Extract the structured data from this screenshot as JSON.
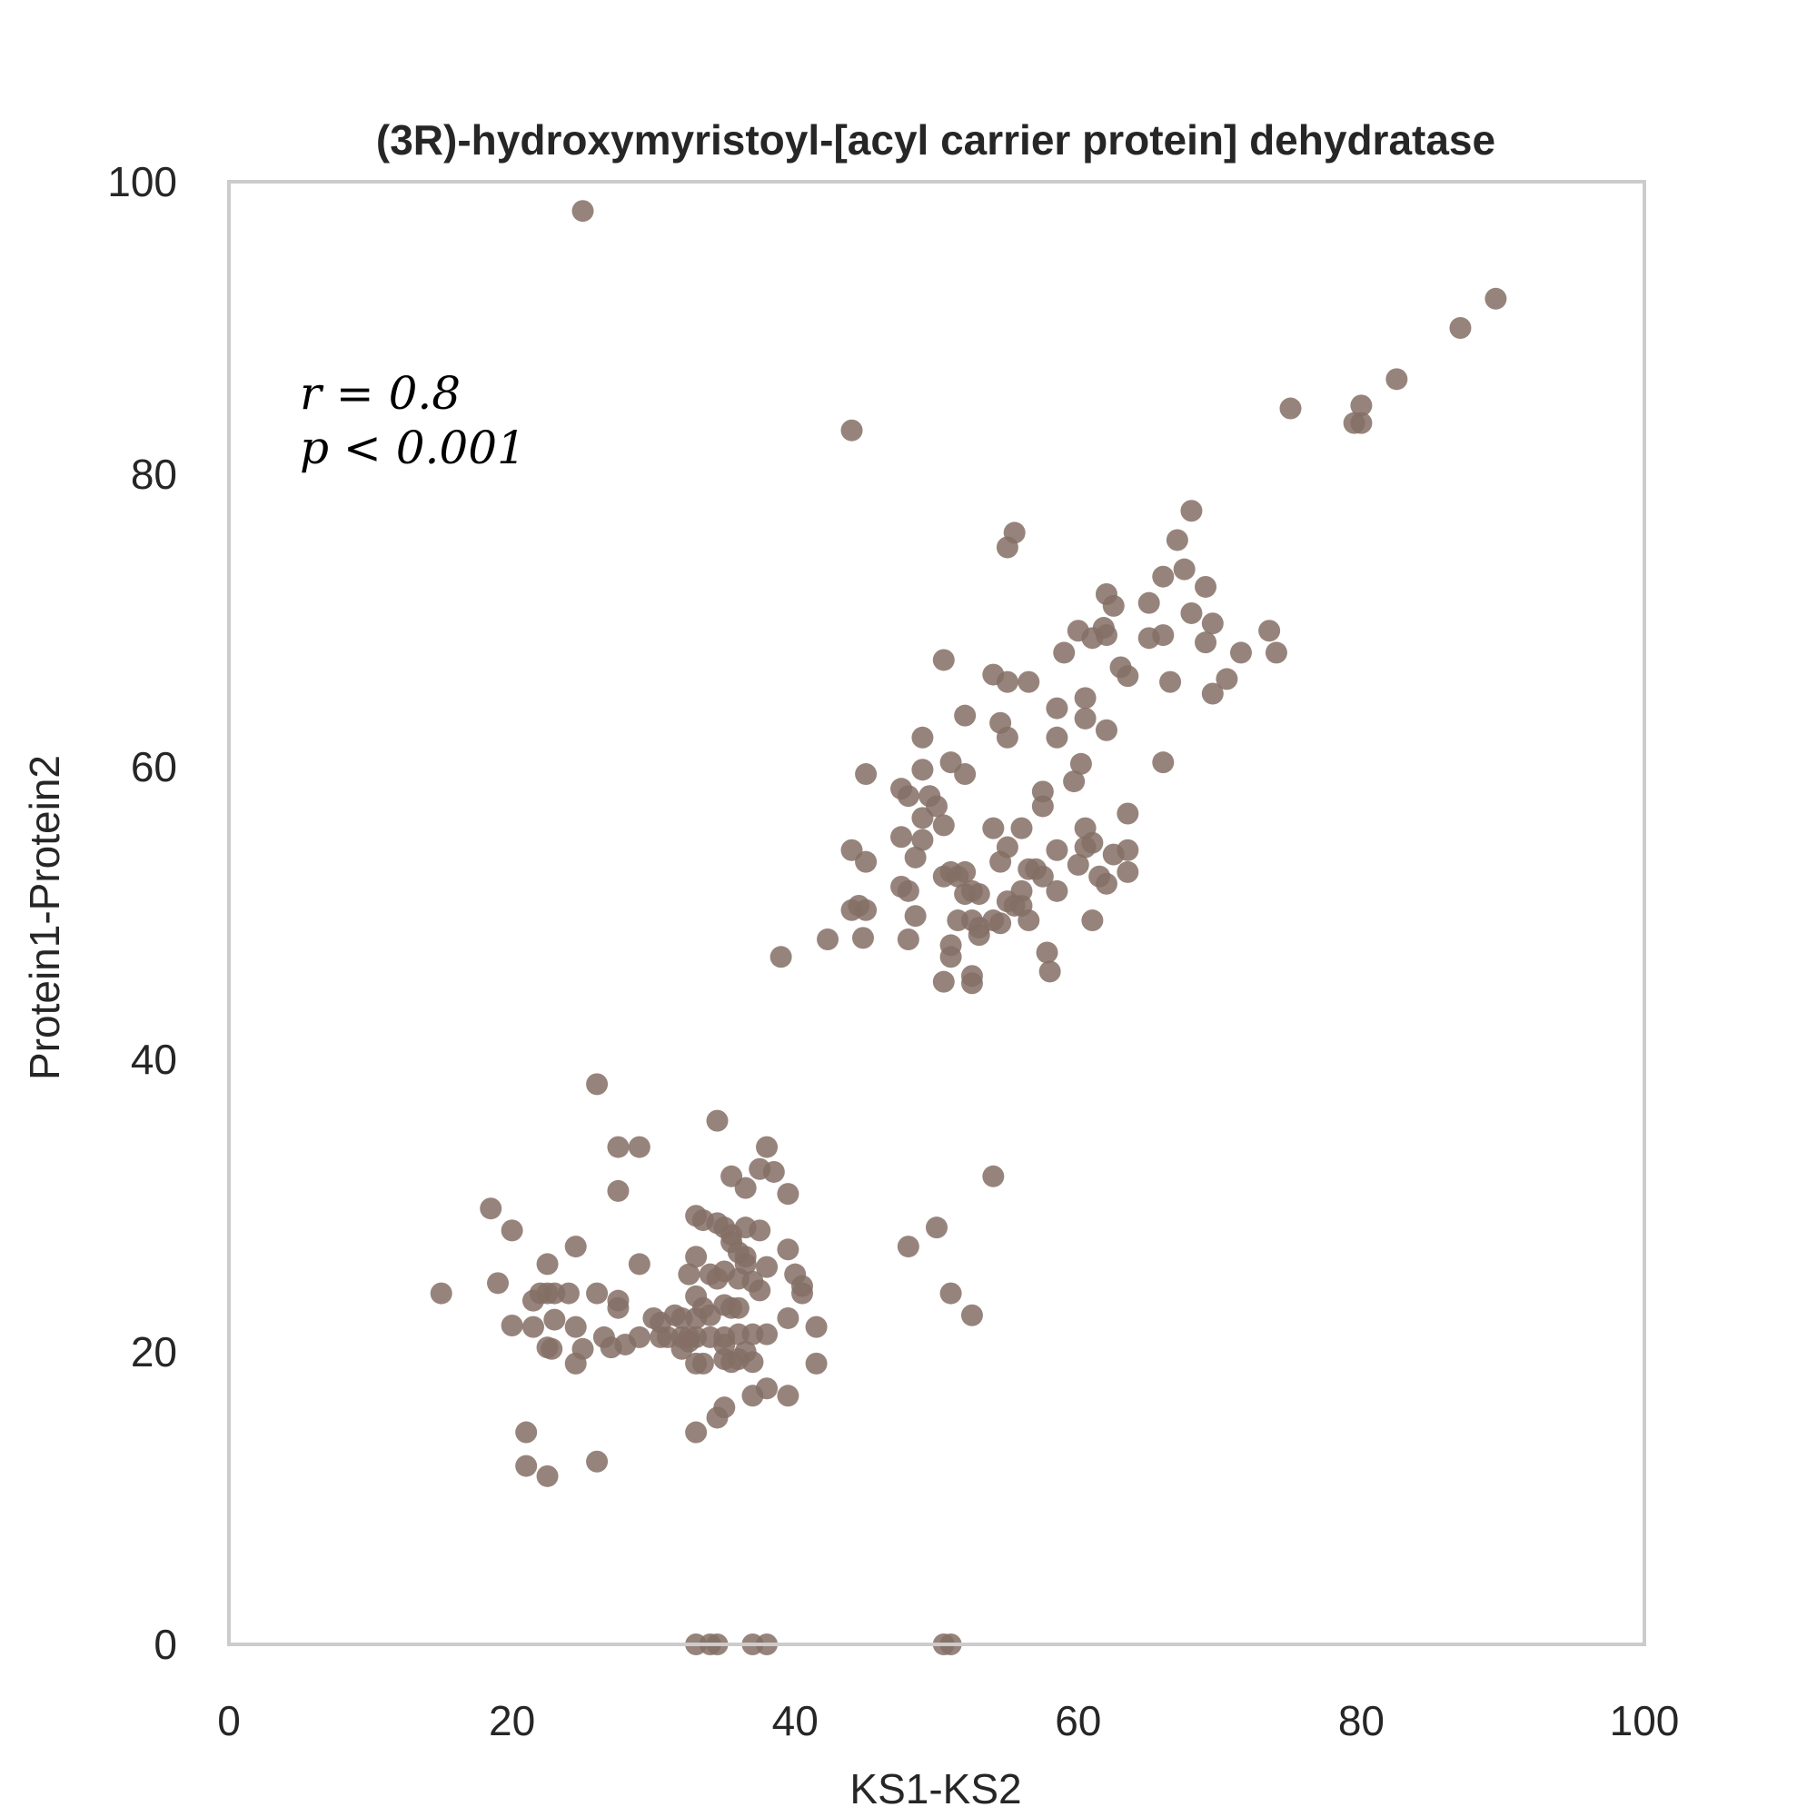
{
  "chart_data": {
    "type": "scatter",
    "title": "(3R)-hydroxymyristoyl-[acyl carrier protein] dehydratase",
    "xlabel": "KS1-KS2",
    "ylabel": "Protein1-Protein2",
    "xlim": [
      0,
      100
    ],
    "ylim": [
      0,
      100
    ],
    "xticks": [
      "0",
      "20",
      "40",
      "60",
      "80",
      "100"
    ],
    "yticks": [
      "0",
      "20",
      "40",
      "60",
      "80",
      "100"
    ],
    "grid": false,
    "annotations": {
      "r": "r = 0.8",
      "p": "p < 0.001"
    },
    "color": "#846e65",
    "points": [
      [
        25,
        98
      ],
      [
        44,
        83
      ],
      [
        75,
        84.5
      ],
      [
        80,
        84.7
      ],
      [
        79.5,
        83.5
      ],
      [
        80,
        83.5
      ],
      [
        82.5,
        86.5
      ],
      [
        87,
        90
      ],
      [
        89.5,
        92
      ],
      [
        55.5,
        76
      ],
      [
        55,
        75
      ],
      [
        68,
        77.5
      ],
      [
        67,
        75.5
      ],
      [
        67.5,
        73.5
      ],
      [
        66,
        73
      ],
      [
        69,
        72.3
      ],
      [
        62,
        71.8
      ],
      [
        62.5,
        71
      ],
      [
        65,
        71.2
      ],
      [
        68,
        70.5
      ],
      [
        69.5,
        69.8
      ],
      [
        60,
        69.3
      ],
      [
        61,
        68.8
      ],
      [
        61.8,
        69.5
      ],
      [
        62,
        69
      ],
      [
        65,
        68.8
      ],
      [
        66,
        69
      ],
      [
        69,
        68.5
      ],
      [
        73.5,
        69.3
      ],
      [
        74,
        67.8
      ],
      [
        71.5,
        67.8
      ],
      [
        59,
        67.8
      ],
      [
        63,
        66.8
      ],
      [
        63.5,
        66.2
      ],
      [
        66.5,
        65.8
      ],
      [
        70.5,
        66
      ],
      [
        69.5,
        65
      ],
      [
        50.5,
        67.3
      ],
      [
        54,
        66.3
      ],
      [
        55,
        65.8
      ],
      [
        56.5,
        65.8
      ],
      [
        58.5,
        64
      ],
      [
        60.5,
        64.7
      ],
      [
        60.5,
        63.3
      ],
      [
        52,
        63.5
      ],
      [
        54.5,
        63
      ],
      [
        55,
        62
      ],
      [
        49,
        62
      ],
      [
        58.5,
        62
      ],
      [
        62,
        62.5
      ],
      [
        51,
        60.3
      ],
      [
        52,
        59.5
      ],
      [
        49,
        59.8
      ],
      [
        45,
        59.5
      ],
      [
        47.5,
        58.5
      ],
      [
        48,
        58
      ],
      [
        49.5,
        58
      ],
      [
        50,
        57.3
      ],
      [
        57.5,
        58.3
      ],
      [
        60.2,
        60.2
      ],
      [
        59.7,
        59
      ],
      [
        66,
        60.3
      ],
      [
        57.5,
        57.3
      ],
      [
        63.5,
        56.8
      ],
      [
        49,
        56.5
      ],
      [
        50.5,
        56
      ],
      [
        54,
        55.8
      ],
      [
        56,
        55.8
      ],
      [
        60.5,
        55.8
      ],
      [
        61,
        54.8
      ],
      [
        44,
        54.3
      ],
      [
        47.5,
        55.2
      ],
      [
        49,
        55
      ],
      [
        55,
        54.5
      ],
      [
        58.5,
        54.3
      ],
      [
        60.5,
        54.5
      ],
      [
        62.5,
        54
      ],
      [
        63.5,
        54.3
      ],
      [
        45,
        53.5
      ],
      [
        48.5,
        53.8
      ],
      [
        54.5,
        53.5
      ],
      [
        60,
        53.3
      ],
      [
        56.5,
        53
      ],
      [
        57,
        53
      ],
      [
        57.5,
        52.5
      ],
      [
        61.5,
        52.5
      ],
      [
        63.5,
        52.8
      ],
      [
        50.5,
        52.5
      ],
      [
        51,
        52.8
      ],
      [
        51.5,
        52.5
      ],
      [
        52,
        52.8
      ],
      [
        47.5,
        51.8
      ],
      [
        48,
        51.5
      ],
      [
        52,
        51.3
      ],
      [
        52.5,
        51.5
      ],
      [
        53,
        51.3
      ],
      [
        56,
        51.5
      ],
      [
        58.5,
        51.5
      ],
      [
        62,
        52
      ],
      [
        44,
        50.2
      ],
      [
        44.5,
        50.5
      ],
      [
        45,
        50.2
      ],
      [
        55,
        50.8
      ],
      [
        55.5,
        50.5
      ],
      [
        56,
        50.5
      ],
      [
        48.5,
        49.8
      ],
      [
        51.5,
        49.5
      ],
      [
        52.5,
        49.5
      ],
      [
        53,
        49
      ],
      [
        54,
        49.5
      ],
      [
        54.5,
        49.3
      ],
      [
        56.5,
        49.5
      ],
      [
        61,
        49.5
      ],
      [
        42.3,
        48.2
      ],
      [
        44.8,
        48.3
      ],
      [
        48,
        48.2
      ],
      [
        53,
        48.5
      ],
      [
        51,
        47.8
      ],
      [
        39,
        47
      ],
      [
        51,
        47
      ],
      [
        57.8,
        47.3
      ],
      [
        58,
        46
      ],
      [
        52.5,
        45.7
      ],
      [
        52.5,
        45.2
      ],
      [
        50.5,
        45.3
      ],
      [
        26,
        38.3
      ],
      [
        34.5,
        35.8
      ],
      [
        27.5,
        34
      ],
      [
        29,
        34
      ],
      [
        38,
        34
      ],
      [
        35.5,
        32
      ],
      [
        37.5,
        32.5
      ],
      [
        38.5,
        32.3
      ],
      [
        54,
        32
      ],
      [
        27.5,
        31
      ],
      [
        36.5,
        31.2
      ],
      [
        39.5,
        30.8
      ],
      [
        18.5,
        29.8
      ],
      [
        33,
        29.3
      ],
      [
        33.5,
        29
      ],
      [
        34.5,
        28.8
      ],
      [
        35,
        28.5
      ],
      [
        20,
        28.3
      ],
      [
        35.5,
        28
      ],
      [
        36.5,
        28.5
      ],
      [
        37.5,
        28.3
      ],
      [
        50,
        28.5
      ],
      [
        35.5,
        27.5
      ],
      [
        36,
        26.8
      ],
      [
        24.5,
        27.2
      ],
      [
        39.5,
        27
      ],
      [
        48,
        27.2
      ],
      [
        22.5,
        26
      ],
      [
        33,
        26.5
      ],
      [
        36.5,
        26.5
      ],
      [
        29,
        26
      ],
      [
        36.5,
        26
      ],
      [
        38,
        25.8
      ],
      [
        32.5,
        25.3
      ],
      [
        34,
        25.3
      ],
      [
        35,
        25.5
      ],
      [
        40,
        25.3
      ],
      [
        19,
        24.7
      ],
      [
        34.5,
        25
      ],
      [
        36,
        25
      ],
      [
        37,
        24.8
      ],
      [
        40.5,
        24.5
      ],
      [
        22,
        24
      ],
      [
        22.5,
        24
      ],
      [
        23,
        24
      ],
      [
        24,
        24
      ],
      [
        26,
        24
      ],
      [
        37.5,
        24.2
      ],
      [
        51,
        24
      ],
      [
        15,
        24
      ],
      [
        40.5,
        24
      ],
      [
        33,
        23.8
      ],
      [
        21.5,
        23.5
      ],
      [
        27.5,
        23.5
      ],
      [
        35,
        23.2
      ],
      [
        35.5,
        23
      ],
      [
        36,
        23
      ],
      [
        27.5,
        23
      ],
      [
        33.5,
        23
      ],
      [
        52.5,
        22.5
      ],
      [
        34,
        22.5
      ],
      [
        31.5,
        22.5
      ],
      [
        32,
        22.3
      ],
      [
        33,
        22.3
      ],
      [
        30,
        22.3
      ],
      [
        30.5,
        22
      ],
      [
        23,
        22.2
      ],
      [
        39.5,
        22.3
      ],
      [
        21.5,
        21.7
      ],
      [
        20,
        21.8
      ],
      [
        24.5,
        21.7
      ],
      [
        41.5,
        21.7
      ],
      [
        29,
        21
      ],
      [
        30.5,
        21
      ],
      [
        31,
        21
      ],
      [
        32,
        21
      ],
      [
        32.5,
        21
      ],
      [
        33,
        21
      ],
      [
        34,
        21
      ],
      [
        36,
        21.2
      ],
      [
        37,
        21.2
      ],
      [
        26.5,
        21
      ],
      [
        38,
        21.2
      ],
      [
        32.5,
        20.7
      ],
      [
        35,
        21
      ],
      [
        22.5,
        20.3
      ],
      [
        22.8,
        20.2
      ],
      [
        25,
        20.2
      ],
      [
        27,
        20.3
      ],
      [
        28,
        20.5
      ],
      [
        32,
        20.2
      ],
      [
        35,
        20.5
      ],
      [
        36.5,
        20
      ],
      [
        24.5,
        19.2
      ],
      [
        33,
        19.2
      ],
      [
        33.5,
        19.2
      ],
      [
        35,
        19.5
      ],
      [
        35.5,
        19.3
      ],
      [
        36,
        19.5
      ],
      [
        37,
        19.3
      ],
      [
        41.5,
        19.2
      ],
      [
        38,
        17.5
      ],
      [
        37,
        17
      ],
      [
        39.5,
        17
      ],
      [
        35,
        16.2
      ],
      [
        34.5,
        15.5
      ],
      [
        33,
        14.5
      ],
      [
        21,
        14.5
      ],
      [
        21,
        12.2
      ],
      [
        22.5,
        11.5
      ],
      [
        26,
        12.5
      ],
      [
        33,
        0
      ],
      [
        34,
        0
      ],
      [
        34.5,
        0
      ],
      [
        37,
        0
      ],
      [
        38,
        0
      ],
      [
        50.5,
        0
      ],
      [
        51,
        0
      ]
    ]
  }
}
